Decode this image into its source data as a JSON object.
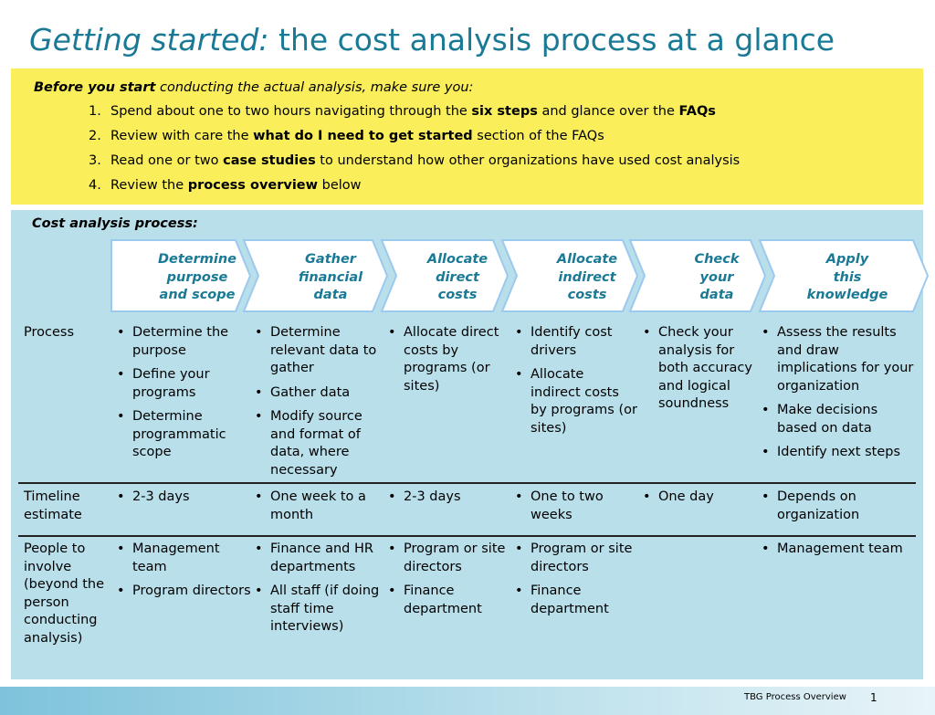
{
  "title": {
    "italic": "Getting started:",
    "rest": " the cost analysis process at a glance"
  },
  "before": {
    "intro_bold": "Before you start",
    "intro_rest": " conducting the actual analysis, make sure you:",
    "steps": [
      {
        "num": "1.",
        "parts": [
          {
            "t": "Spend about one to two hours navigating through the "
          },
          {
            "t": "six steps",
            "b": true
          },
          {
            "t": " and glance over the "
          },
          {
            "t": "FAQs",
            "b": true
          }
        ]
      },
      {
        "num": "2.",
        "parts": [
          {
            "t": "Review with care the "
          },
          {
            "t": "what do I need to get started",
            "b": true
          },
          {
            "t": " section of the FAQs"
          }
        ]
      },
      {
        "num": "3.",
        "parts": [
          {
            "t": "Read one or two "
          },
          {
            "t": "case studies",
            "b": true
          },
          {
            "t": " to understand how other organizations have used cost analysis"
          }
        ]
      },
      {
        "num": "4.",
        "parts": [
          {
            "t": "Review the "
          },
          {
            "t": "process overview",
            "b": true
          },
          {
            "t": " below"
          }
        ]
      }
    ]
  },
  "process": {
    "caption": "Cost analysis process:",
    "steps": [
      {
        "label": [
          "Determine",
          "purpose",
          "and scope"
        ]
      },
      {
        "label": [
          "Gather",
          "financial",
          "data"
        ]
      },
      {
        "label": [
          "Allocate",
          "direct",
          "costs"
        ]
      },
      {
        "label": [
          "Allocate",
          "indirect",
          "costs"
        ]
      },
      {
        "label": [
          "Check",
          "your",
          "data"
        ]
      },
      {
        "label": [
          "Apply",
          "this",
          "knowledge"
        ]
      }
    ],
    "rows": [
      {
        "label": "Process",
        "cells": [
          [
            "Determine the purpose",
            "Define your programs",
            "Determine programmatic scope"
          ],
          [
            "Determine relevant data to gather",
            "Gather data",
            "Modify source and format of data, where necessary"
          ],
          [
            "Allocate direct costs by programs (or sites)"
          ],
          [
            "Identify cost drivers",
            "Allocate indirect costs by programs (or sites)"
          ],
          [
            "Check your analysis for both accuracy and logical soundness"
          ],
          [
            "Assess the results and draw implications for your organization",
            "Make decisions based on data",
            "Identify next steps"
          ]
        ]
      },
      {
        "label": "Timeline estimate",
        "cells": [
          [
            "2-3 days"
          ],
          [
            "One week to a month"
          ],
          [
            "2-3 days"
          ],
          [
            "One to two weeks"
          ],
          [
            "One day"
          ],
          [
            "Depends on organization"
          ]
        ]
      },
      {
        "label": "People to involve (beyond the person conducting analysis)",
        "cells": [
          [
            "Management team",
            "Program directors"
          ],
          [
            "Finance and HR departments",
            "All staff (if doing staff time interviews)"
          ],
          [
            "Program or site directors",
            "Finance department"
          ],
          [
            "Program or site directors",
            "Finance department"
          ],
          [],
          [
            "Management team"
          ]
        ]
      }
    ]
  },
  "footer": {
    "text": "TBG   Process Overview",
    "page": "1"
  },
  "colors": {
    "title": "#1a7a96",
    "yellow_band": "#faef5a",
    "blue_band": "#b9dfeb",
    "chevron_stroke": "#9cc9ee"
  }
}
